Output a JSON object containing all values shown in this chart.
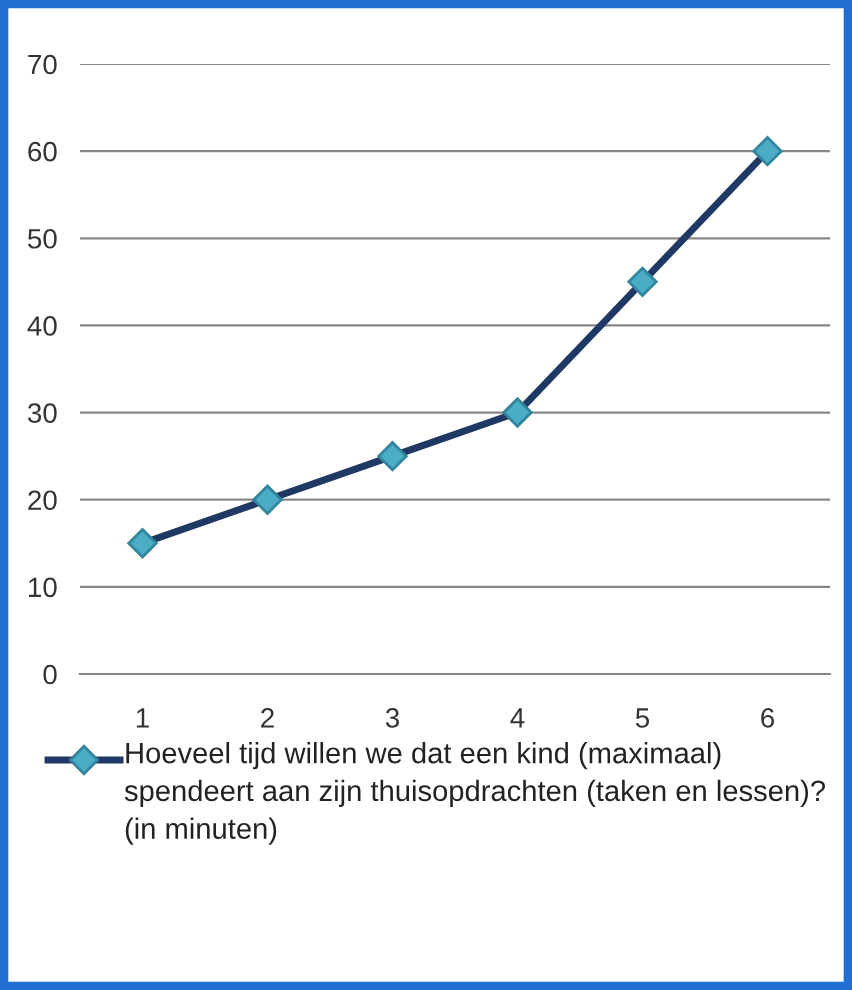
{
  "chart_data": {
    "type": "line",
    "categories": [
      "1",
      "2",
      "3",
      "4",
      "5",
      "6"
    ],
    "series": [
      {
        "name": "Hoeveel tijd willen we dat een kind (maximaal)  spendeert aan zijn thuisopdrachten (taken en lessen)? (in minuten)",
        "color": "#1f3864",
        "values": [
          15,
          20,
          25,
          30,
          45,
          60
        ]
      }
    ],
    "ylim": [
      0,
      70
    ],
    "yticks": [
      0,
      10,
      20,
      30,
      40,
      50,
      60,
      70
    ],
    "grid": "y",
    "legend": "bottom",
    "marker": "diamond",
    "line_style": "solid"
  }
}
